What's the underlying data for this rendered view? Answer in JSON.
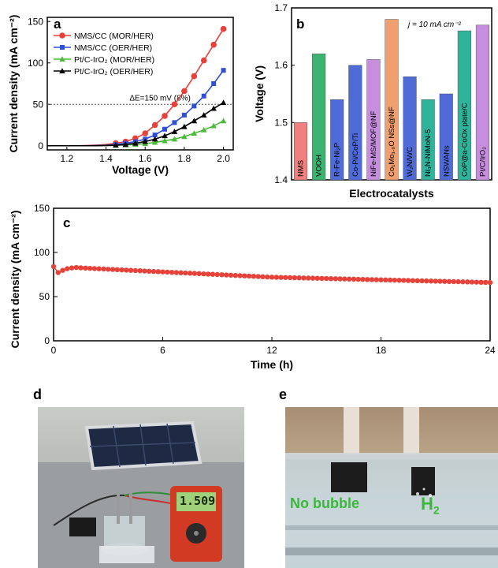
{
  "panel_labels": {
    "a": "a",
    "b": "b",
    "c": "c",
    "d": "d",
    "e": "e"
  },
  "colors": {
    "red": "#e8413a",
    "blue": "#2e4fd6",
    "green": "#4cbb3b",
    "black": "#000000",
    "bar_red": "#f08080",
    "bar_green": "#3cb371",
    "bar_blue": "#4f6bd8",
    "bar_purple": "#c78ee0",
    "bar_orange": "#f0a070",
    "bar_teal": "#2fb39a"
  },
  "chart_data": [
    {
      "panel": "a",
      "type": "line",
      "xlabel": "Voltage (V)",
      "ylabel": "Current density (mA cm⁻²)",
      "xlim": [
        1.1,
        2.05
      ],
      "ylim": [
        -5,
        155
      ],
      "xticks": [
        "1.2",
        "1.4",
        "1.6",
        "1.8",
        "2.0"
      ],
      "yticks": [
        "0",
        "50",
        "100",
        "150"
      ],
      "legend_position": "top-left",
      "annotation": "ΔE=150 mV (8%)",
      "reference_line_y": 50,
      "series": [
        {
          "name": "NMS/CC (MOR/HER)",
          "color_key": "red",
          "marker": "circle",
          "x": [
            1.1,
            1.15,
            1.2,
            1.25,
            1.3,
            1.35,
            1.4,
            1.45,
            1.5,
            1.55,
            1.6,
            1.65,
            1.7,
            1.75,
            1.8,
            1.85,
            1.9,
            1.95,
            2.0
          ],
          "y": [
            0,
            0,
            0,
            0,
            0.3,
            0.8,
            1.5,
            3,
            5,
            9,
            15,
            25,
            36,
            50,
            66,
            84,
            103,
            122,
            141
          ]
        },
        {
          "name": "NMS/CC (OER/HER)",
          "color_key": "blue",
          "marker": "square",
          "x": [
            1.1,
            1.15,
            1.2,
            1.25,
            1.3,
            1.35,
            1.4,
            1.45,
            1.5,
            1.55,
            1.6,
            1.65,
            1.7,
            1.75,
            1.8,
            1.85,
            1.9,
            1.95,
            2.0
          ],
          "y": [
            0,
            0,
            0,
            0,
            0,
            0.3,
            0.7,
            1.5,
            3,
            5,
            8,
            13,
            20,
            28,
            37,
            48,
            60,
            75,
            91
          ]
        },
        {
          "name": "Pt/C-IrO₂ (MOR/HER)",
          "color_key": "green",
          "marker": "triangle",
          "x": [
            1.1,
            1.15,
            1.2,
            1.25,
            1.3,
            1.35,
            1.4,
            1.45,
            1.5,
            1.55,
            1.6,
            1.65,
            1.7,
            1.75,
            1.8,
            1.85,
            1.9,
            1.95,
            2.0
          ],
          "y": [
            0,
            0,
            0,
            0,
            0,
            0,
            0.2,
            0.5,
            1,
            1.5,
            2.5,
            4,
            6,
            8,
            11,
            15,
            19,
            24,
            30
          ]
        },
        {
          "name": "Pt/C-IrO₂ (OER/HER)",
          "color_key": "black",
          "marker": "triangle",
          "x": [
            1.1,
            1.15,
            1.2,
            1.25,
            1.3,
            1.35,
            1.4,
            1.45,
            1.5,
            1.55,
            1.6,
            1.65,
            1.7,
            1.75,
            1.8,
            1.85,
            1.9,
            1.95,
            2.0
          ],
          "y": [
            0,
            0,
            0,
            0,
            0,
            0,
            0.3,
            0.7,
            1.5,
            3,
            5,
            8,
            12,
            17,
            23,
            30,
            37,
            45,
            52
          ]
        }
      ]
    },
    {
      "panel": "b",
      "type": "bar",
      "xlabel": "Electrocatalysts",
      "ylabel": "Voltage (V)",
      "ylim": [
        1.4,
        1.7
      ],
      "yticks": [
        "1.4",
        "1.5",
        "1.6",
        "1.7"
      ],
      "annotation": "j = 10 mA cm⁻²",
      "categories": [
        "NMS",
        "VOOH",
        "R-Fe-Ni₂P",
        "Co-Pi/CoP/Ti",
        "NiFe-MS/MOF@NF",
        "Co₁Mo₁.₀O NSs@NF",
        "W₂N/WC",
        "Ni₃N-NiMoN-5",
        "NSWANs",
        "CoP@a-CoOx plate/C",
        "Pt/C/IrO₂"
      ],
      "values": [
        1.5,
        1.62,
        1.54,
        1.6,
        1.61,
        1.68,
        1.58,
        1.54,
        1.55,
        1.66,
        1.67
      ],
      "bar_colors": [
        "bar_red",
        "bar_green",
        "bar_blue",
        "bar_blue",
        "bar_purple",
        "bar_orange",
        "bar_blue",
        "bar_teal",
        "bar_blue",
        "bar_teal",
        "bar_purple"
      ]
    },
    {
      "panel": "c",
      "type": "line",
      "xlabel": "Time (h)",
      "ylabel": "Current density (mA cm⁻²)",
      "xlim": [
        0,
        24
      ],
      "ylim": [
        0,
        150
      ],
      "xticks": [
        "0",
        "6",
        "12",
        "18",
        "24"
      ],
      "yticks": [
        "0",
        "50",
        "100",
        "150"
      ],
      "series": [
        {
          "name": "",
          "color_key": "red",
          "marker": "circle",
          "x": [
            0,
            0.15,
            0.4,
            0.8,
            1.2,
            2,
            3,
            4,
            6,
            8,
            10,
            12,
            14,
            16,
            18,
            20,
            22,
            24
          ],
          "y": [
            84,
            76,
            79,
            82,
            83,
            82,
            81,
            80,
            78,
            76,
            74,
            72,
            71,
            70,
            69,
            68,
            67,
            66
          ]
        }
      ]
    }
  ],
  "photo_d": {
    "lcd_reading": "1.509"
  },
  "photo_e": {
    "left_text": "No bubble",
    "right_text": "H",
    "right_sub": "2"
  }
}
